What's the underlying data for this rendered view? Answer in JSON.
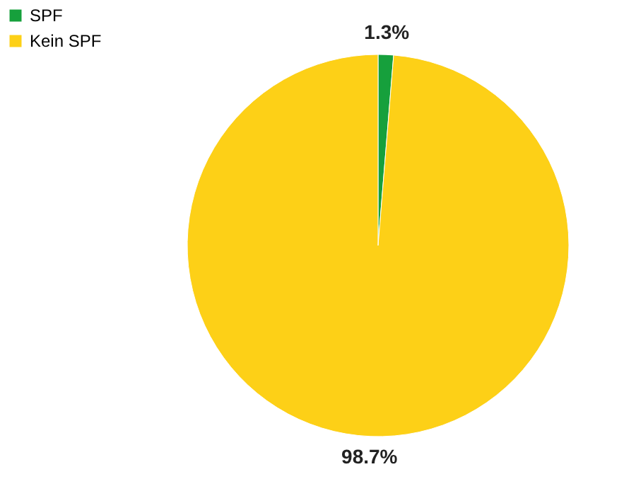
{
  "chart_data": {
    "type": "pie",
    "categories": [
      "SPF",
      "Kein SPF"
    ],
    "values": [
      1.3,
      98.7
    ],
    "colors": [
      "#16a03c",
      "#fdd017"
    ],
    "value_labels": [
      "1.3%",
      "98.7%"
    ],
    "legend": "left"
  }
}
